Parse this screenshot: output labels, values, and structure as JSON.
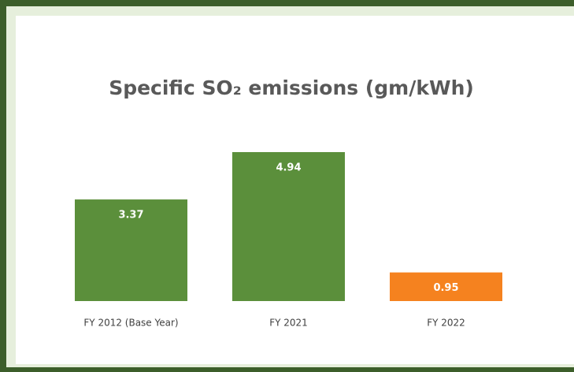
{
  "chart_data": {
    "type": "bar",
    "title": "Specific SO₂ emissions (gm/kWh)",
    "categories": [
      "FY 2012 (Base Year)",
      "FY 2021",
      "FY 2022"
    ],
    "values": [
      3.37,
      4.94,
      0.95
    ],
    "colors": [
      "#5b8f3b",
      "#5b8f3b",
      "#f5821f"
    ],
    "data_labels": true
  }
}
